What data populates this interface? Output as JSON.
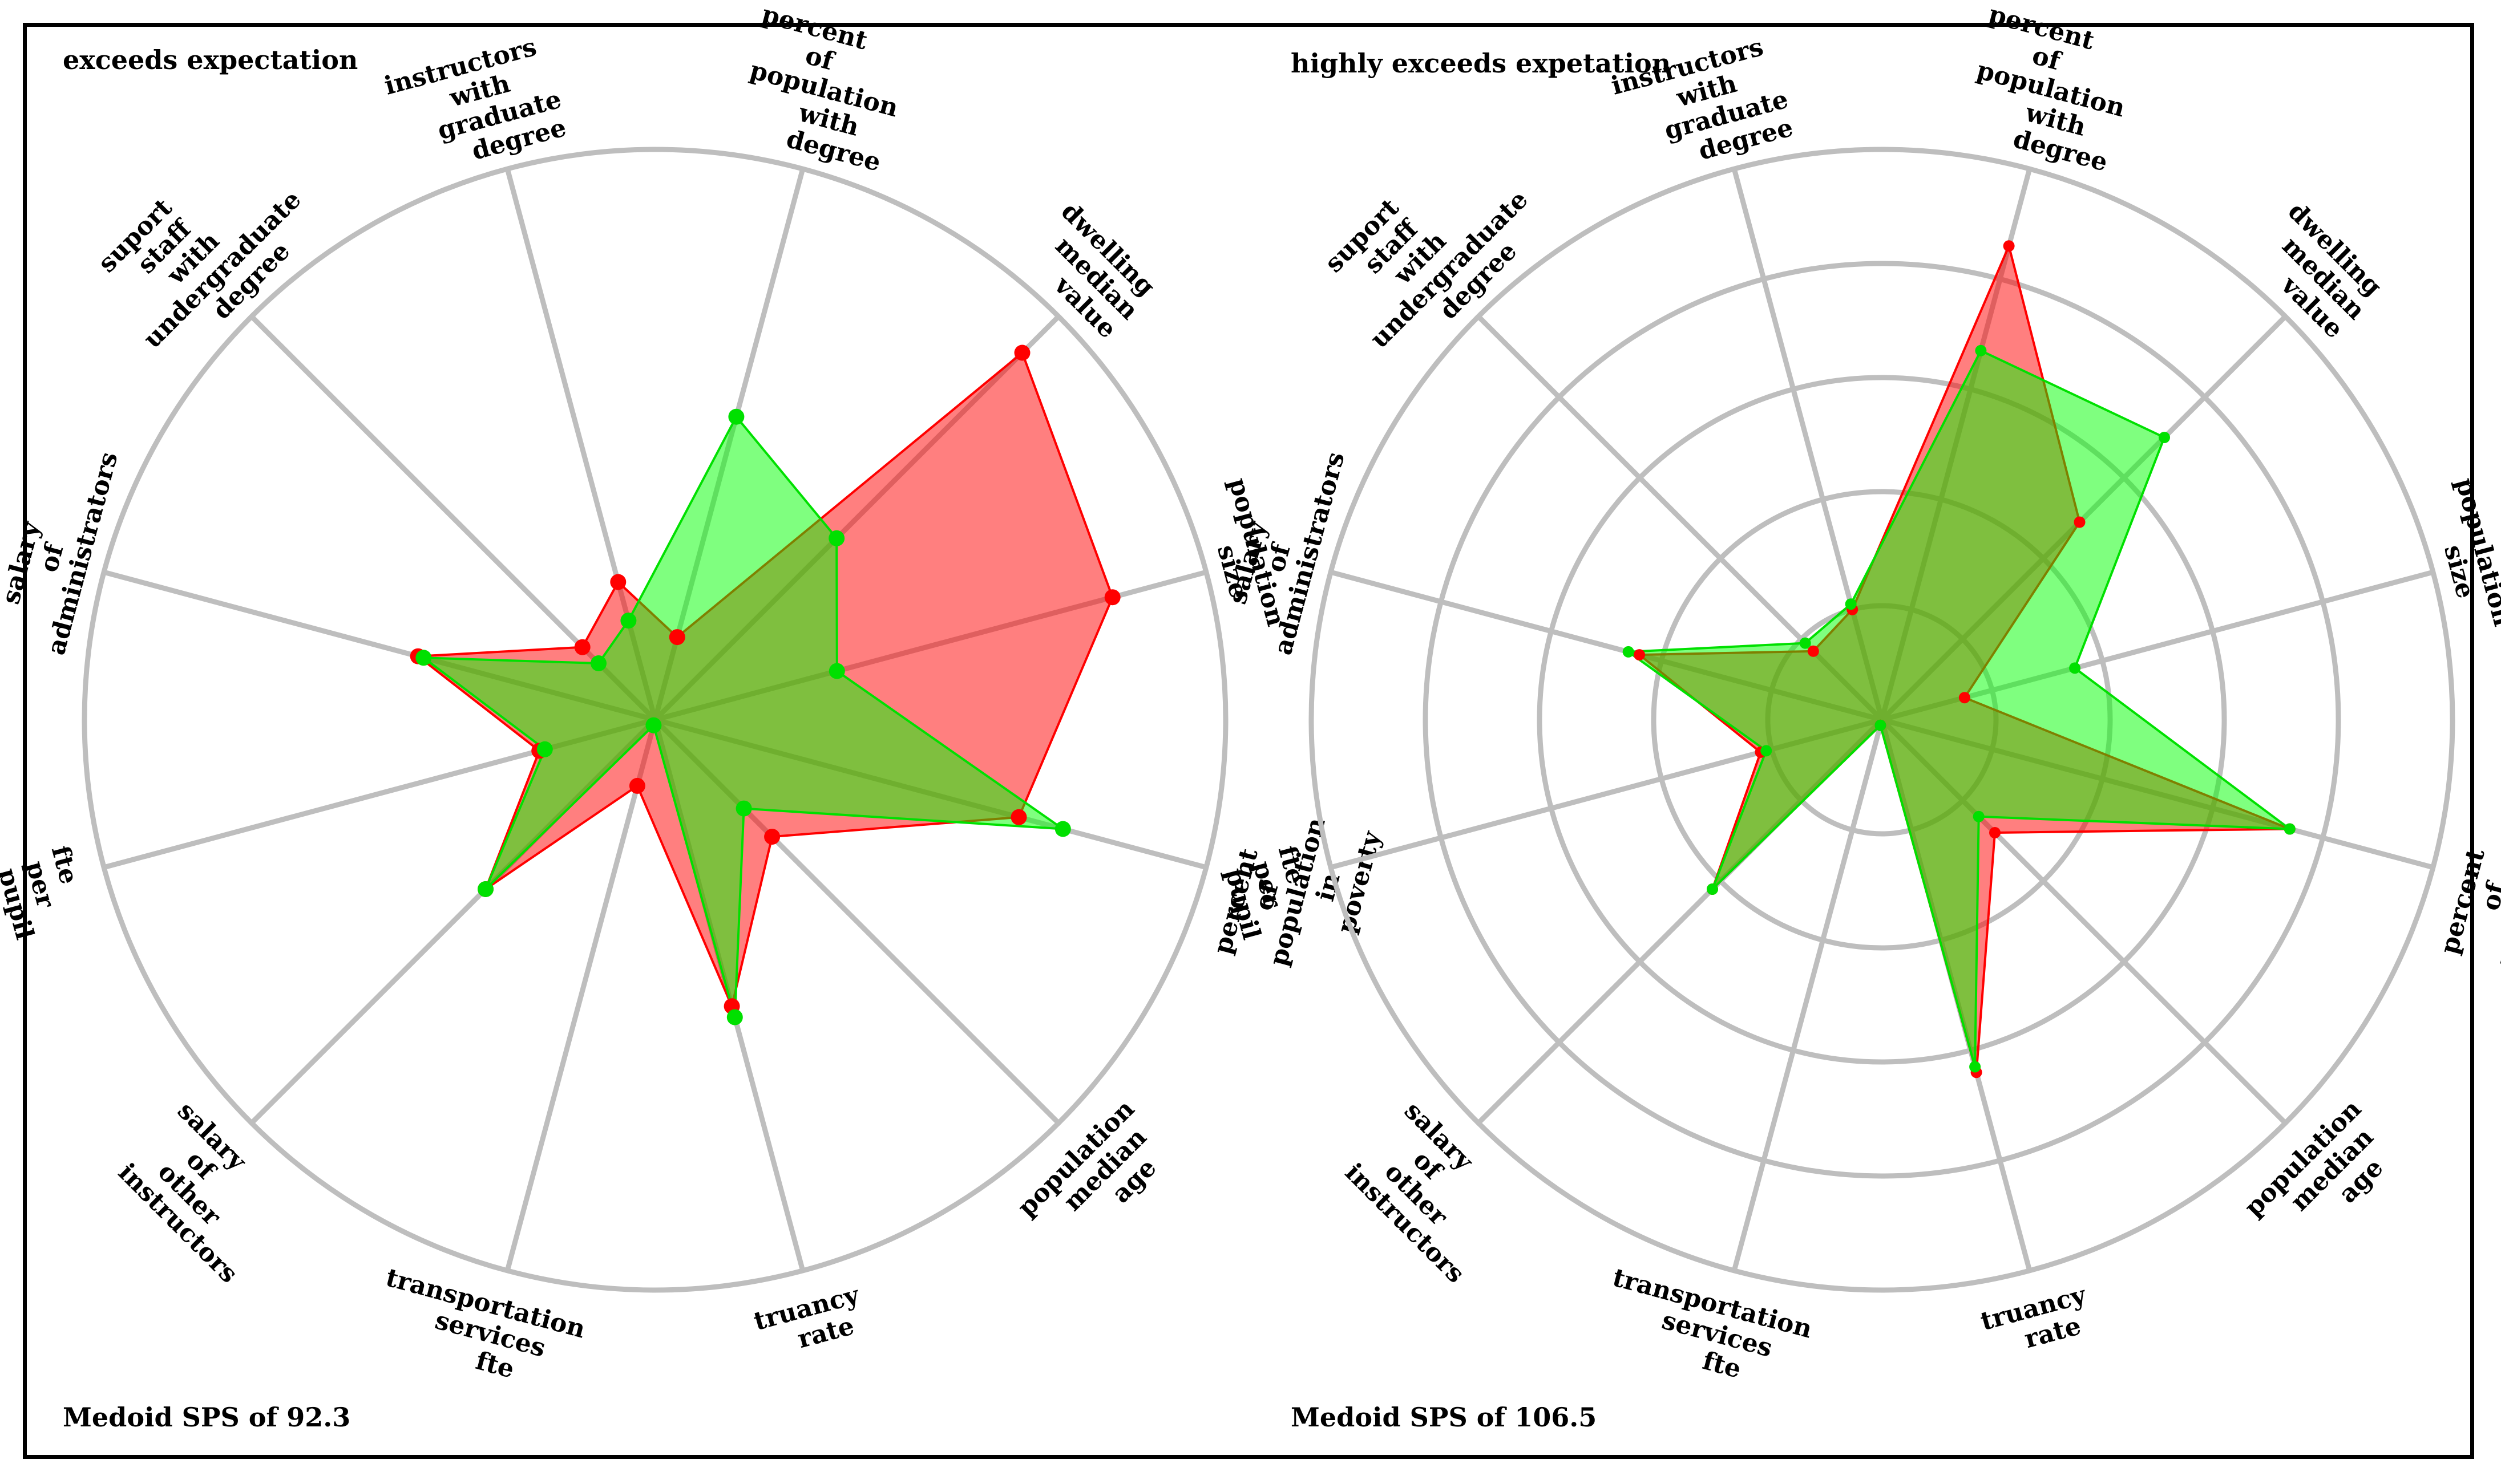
{
  "chart_data": [
    {
      "type": "radar",
      "title": "exceeds expectation",
      "footer": "Medoid SPS of 92.3",
      "axes": [
        [
          "percent",
          "of",
          "population",
          "with",
          "degree"
        ],
        [
          "dwelling",
          "median",
          "value"
        ],
        [
          "population",
          "size"
        ],
        [
          "percent",
          "of",
          "population",
          "in",
          "poverty"
        ],
        [
          "population",
          "median",
          "age"
        ],
        [
          "truancy",
          "rate"
        ],
        [
          "transportation",
          "services",
          "fte"
        ],
        [
          "salary",
          "of",
          "other",
          "instructors"
        ],
        [
          "fte",
          "per",
          "pupil"
        ],
        [
          "salary",
          "of",
          "administrators"
        ],
        [
          "suport",
          "staff",
          "with",
          "undergraduate",
          "degree"
        ],
        [
          "instructors",
          "with",
          "graduate",
          "degree"
        ]
      ],
      "range": [
        0,
        1
      ],
      "grid_levels": [
        1.0
      ],
      "series": [
        {
          "name": "red",
          "color": "#ff0000",
          "fill": "rgba(255,0,0,0.5)",
          "values": [
            0.15,
            0.91,
            0.83,
            0.66,
            0.29,
            0.52,
            0.12,
            0.42,
            0.21,
            0.43,
            0.18,
            0.25
          ]
        },
        {
          "name": "green",
          "color": "#00e000",
          "fill": "rgba(0,255,0,0.5)",
          "values": [
            0.55,
            0.45,
            0.33,
            0.74,
            0.22,
            0.54,
            0.01,
            0.42,
            0.2,
            0.42,
            0.14,
            0.18
          ]
        }
      ]
    },
    {
      "type": "radar",
      "title": "highly exceeds expetation",
      "footer": "Medoid SPS of 106.5",
      "axes": [
        [
          "percent",
          "of",
          "population",
          "with",
          "degree"
        ],
        [
          "dwelling",
          "median",
          "value"
        ],
        [
          "population",
          "size"
        ],
        [
          "percent",
          "of",
          "population",
          "in",
          "poverty"
        ],
        [
          "population",
          "median",
          "age"
        ],
        [
          "truancy",
          "rate"
        ],
        [
          "transportation",
          "services",
          "fte"
        ],
        [
          "salary",
          "of",
          "other",
          "instructors"
        ],
        [
          "fte",
          "per",
          "pupil"
        ],
        [
          "salary",
          "of",
          "administrators"
        ],
        [
          "suport",
          "staff",
          "with",
          "undergraduate",
          "degree"
        ],
        [
          "instructors",
          "with",
          "graduate",
          "degree"
        ]
      ],
      "range": [
        0,
        1
      ],
      "grid_levels": [
        0.2,
        0.4,
        0.6,
        0.8,
        1.0
      ],
      "series": [
        {
          "name": "red",
          "color": "#ff0000",
          "fill": "rgba(255,0,0,0.5)",
          "values": [
            0.86,
            0.49,
            0.15,
            0.74,
            0.28,
            0.64,
            0.01,
            0.42,
            0.22,
            0.44,
            0.17,
            0.2
          ]
        },
        {
          "name": "green",
          "color": "#00e000",
          "fill": "rgba(0,255,0,0.5)",
          "values": [
            0.67,
            0.7,
            0.35,
            0.74,
            0.24,
            0.63,
            0.01,
            0.42,
            0.21,
            0.46,
            0.19,
            0.21
          ]
        }
      ]
    }
  ]
}
